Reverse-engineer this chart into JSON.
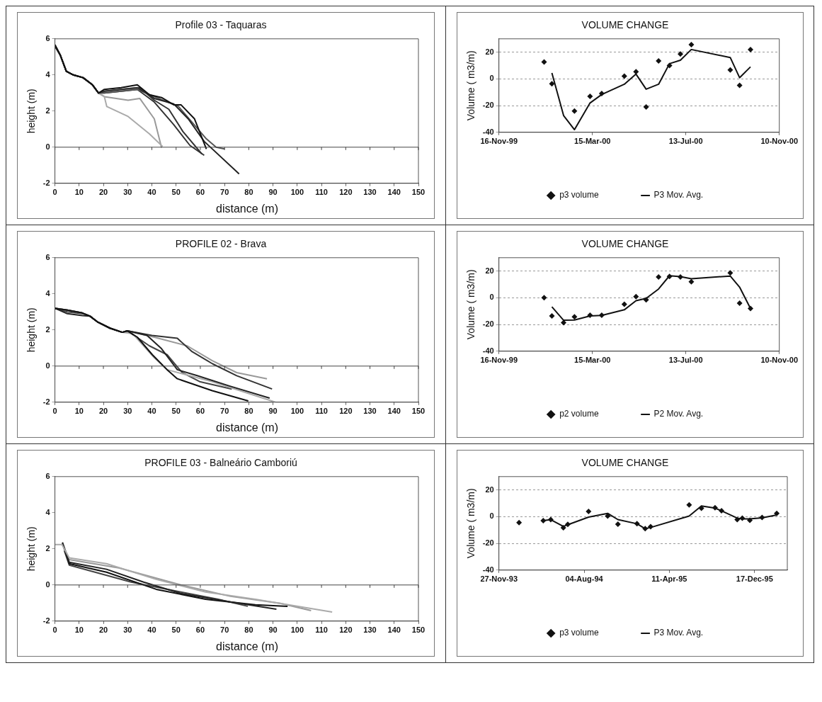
{
  "chart_data": [
    {
      "type": "line",
      "title": "Profile 03 - Taquaras",
      "ref_lines": [
        {
          "axis": "y",
          "value": 0
        }
      ],
      "xlabel": "distance (m)",
      "ylabel": "height (m)",
      "xlim": [
        0,
        150
      ],
      "xticks": [
        0,
        10,
        20,
        30,
        40,
        50,
        60,
        70,
        80,
        90,
        100,
        110,
        120,
        130,
        140,
        150
      ],
      "ylim": [
        -2,
        6
      ],
      "yticks": [
        -2,
        0,
        2,
        4,
        6
      ],
      "grid": false,
      "legend": false,
      "marker": "none",
      "series": [
        {
          "color": "#111111",
          "x": [
            0,
            2.2,
            4.7,
            7.6,
            11.6,
            15.5,
            18,
            20.4,
            27.3,
            34,
            39,
            44,
            49,
            52,
            57.6,
            62.5
          ],
          "values": [
            5.67,
            5.1,
            4.2,
            4,
            3.85,
            3.45,
            3,
            3.2,
            3.3,
            3.45,
            2.9,
            2.75,
            2.35,
            2.35,
            1.57,
            -0.1
          ]
        },
        {
          "color": "#333333",
          "x": [
            0,
            2.2,
            4.7,
            7.6,
            11.6,
            15.5,
            18,
            20.4,
            27.3,
            35,
            41,
            47,
            52.8,
            60.6
          ],
          "values": [
            5.67,
            5.1,
            4.2,
            4,
            3.85,
            3.45,
            3,
            3.1,
            3.2,
            3.3,
            2.6,
            2.1,
            0.87,
            -0.37
          ]
        },
        {
          "color": "#222222",
          "x": [
            0,
            2.2,
            4.7,
            7.6,
            11.6,
            15.5,
            18,
            20.4,
            27.3,
            34,
            41,
            49,
            55,
            61.6,
            76
          ],
          "values": [
            5.6,
            5.1,
            4.2,
            4,
            3.85,
            3.45,
            3,
            3.1,
            3.2,
            3.3,
            2.7,
            2.4,
            1.57,
            0.32,
            -1.48
          ]
        },
        {
          "color": "#555555",
          "x": [
            0,
            2.2,
            4.7,
            7.6,
            11.6,
            15.5,
            18,
            20.4,
            27.3,
            34,
            41,
            51,
            62.5,
            66.5,
            70
          ],
          "values": [
            5.6,
            5.1,
            4.2,
            4,
            3.85,
            3.45,
            3,
            3,
            3.1,
            3.2,
            2.8,
            2.25,
            0.46,
            0,
            -0.1
          ]
        },
        {
          "color": "#aaaaaa",
          "x": [
            0,
            2.2,
            4.7,
            7.6,
            11.6,
            15.5,
            18,
            20.4,
            21.4,
            30.2,
            39,
            44.4
          ],
          "values": [
            5.6,
            5.1,
            4.2,
            4,
            3.85,
            3.45,
            3,
            2.8,
            2.25,
            1.7,
            0.74,
            0.04
          ]
        },
        {
          "color": "#999999",
          "x": [
            0,
            2.2,
            4.7,
            7.6,
            11.6,
            15.5,
            18,
            20.4,
            30.2,
            35,
            41,
            44
          ],
          "values": [
            5.6,
            5.1,
            4.2,
            4,
            3.85,
            3.45,
            3,
            2.8,
            2.6,
            2.7,
            1.57,
            -0.03
          ]
        },
        {
          "color": "#333333",
          "x": [
            0,
            2.2,
            4.7,
            7.6,
            11.6,
            15.5,
            18,
            20.4,
            27.3,
            34,
            41,
            49,
            55.7,
            61.6
          ],
          "values": [
            5.6,
            5.1,
            4.2,
            4,
            3.85,
            3.45,
            3,
            3,
            3.1,
            3.2,
            2.5,
            1.25,
            0.1,
            -0.45
          ]
        }
      ]
    },
    {
      "type": "scatter",
      "title": "VOLUME CHANGE",
      "ylabel": "Volume ( m3/m)",
      "xlim": [
        "1999-11-16",
        "2000-11-10"
      ],
      "xticks": [
        {
          "value": "1999-11-16",
          "label": "16-Nov-99"
        },
        {
          "value": "2000-03-15",
          "label": "15-Mar-00"
        },
        {
          "value": "2000-07-13",
          "label": "13-Jul-00"
        },
        {
          "value": "2000-11-10",
          "label": "10-Nov-00"
        }
      ],
      "ylim": [
        -40,
        30
      ],
      "yticks": [
        -40,
        -20,
        0,
        20
      ],
      "grid": "y",
      "legend": "bottom",
      "series": [
        {
          "name": "p3 volume",
          "type": "scatter",
          "marker": "diamond",
          "color": "#111111",
          "x": [
            "2000-01-13",
            "2000-01-23",
            "2000-02-21",
            "2000-03-12",
            "2000-03-27",
            "2000-04-25",
            "2000-05-10",
            "2000-05-23",
            "2000-06-08",
            "2000-06-22",
            "2000-07-06",
            "2000-07-20",
            "2000-09-08",
            "2000-09-20",
            "2000-10-04"
          ],
          "values": [
            12.6,
            -3.6,
            -24,
            -13,
            -11,
            2,
            5.4,
            -21,
            13.4,
            10,
            18.6,
            25.6,
            6.7,
            -4.9,
            22
          ]
        },
        {
          "name": "P3 Mov. Avg.",
          "type": "line",
          "marker": "none",
          "color": "#111111",
          "x": [
            "2000-01-23",
            "2000-02-07",
            "2000-02-21",
            "2000-03-12",
            "2000-03-27",
            "2000-04-25",
            "2000-05-10",
            "2000-05-23",
            "2000-06-08",
            "2000-06-22",
            "2000-07-06",
            "2000-07-20",
            "2000-09-08",
            "2000-09-20",
            "2000-10-04"
          ],
          "values": [
            4.4,
            -27.4,
            -38,
            -18,
            -11.7,
            -4,
            3.6,
            -7.7,
            -4,
            11.4,
            14,
            22,
            16,
            0.9,
            9
          ]
        }
      ]
    },
    {
      "type": "line",
      "title": "PROFILE 02 - Brava",
      "ref_lines": [
        {
          "axis": "y",
          "value": 0
        }
      ],
      "xlabel": "distance (m)",
      "ylabel": "height (m)",
      "xlim": [
        0,
        150
      ],
      "xticks": [
        0,
        10,
        20,
        30,
        40,
        50,
        60,
        70,
        80,
        90,
        100,
        110,
        120,
        130,
        140,
        150
      ],
      "ylim": [
        -2,
        6
      ],
      "yticks": [
        -2,
        0,
        2,
        4,
        6
      ],
      "grid": false,
      "legend": false,
      "marker": "none",
      "series": [
        {
          "color": "#111111",
          "x": [
            0,
            5.1,
            11.3,
            14.4,
            17.5,
            22.7,
            27.8,
            29.9,
            34,
            40.2,
            46.3,
            50.5,
            64.9,
            79.8
          ],
          "values": [
            3.2,
            3.1,
            2.94,
            2.77,
            2.45,
            2.1,
            1.87,
            1.95,
            1.6,
            0.63,
            -0.2,
            -0.7,
            -1.36,
            -1.93
          ]
        },
        {
          "color": "#222222",
          "x": [
            0,
            5.1,
            11.3,
            14.4,
            17.5,
            22.7,
            27.8,
            29.9,
            38,
            44,
            50.5,
            58.7,
            72,
            88.6
          ],
          "values": [
            3.2,
            2.9,
            2.8,
            2.77,
            2.45,
            2.1,
            1.87,
            1.95,
            1.7,
            0.96,
            -0.2,
            -0.53,
            -1.1,
            -1.77
          ]
        },
        {
          "color": "#333333",
          "x": [
            0,
            5.1,
            11.3,
            14.4,
            17.5,
            22.7,
            27.8,
            29.9,
            40,
            50.5,
            56.6,
            65,
            75,
            89.6
          ],
          "values": [
            3.2,
            3.1,
            2.94,
            2.77,
            2.45,
            2.1,
            1.87,
            1.95,
            1.7,
            1.54,
            0.8,
            0.13,
            -0.53,
            -1.27
          ]
        },
        {
          "color": "#aaaaaa",
          "x": [
            0,
            5.1,
            11.3,
            14.4,
            17.5,
            22.7,
            27.8,
            32,
            41,
            46.3,
            64.9,
            91
          ],
          "values": [
            3.2,
            3.1,
            2.94,
            2.77,
            2.45,
            2.1,
            1.87,
            1.8,
            0.46,
            -0.2,
            -0.86,
            -2
          ]
        },
        {
          "color": "#999999",
          "x": [
            0,
            5.1,
            11.3,
            14.4,
            17.5,
            22.7,
            27.8,
            29.9,
            41,
            54.6,
            64.9,
            75,
            87.5
          ],
          "values": [
            3.2,
            3.1,
            2.94,
            2.77,
            2.45,
            2.1,
            1.87,
            1.95,
            1.6,
            1.12,
            0.3,
            -0.36,
            -0.7
          ]
        },
        {
          "color": "#444444",
          "x": [
            0,
            5.1,
            11.3,
            14.4,
            17.5,
            22.7,
            27.8,
            29.9,
            39,
            46.3,
            52.5,
            59.7,
            73
          ],
          "values": [
            3.2,
            3,
            2.9,
            2.77,
            2.45,
            2.1,
            1.87,
            1.95,
            1.12,
            0.63,
            -0.36,
            -0.86,
            -1.27
          ]
        }
      ]
    },
    {
      "type": "scatter",
      "title": "VOLUME CHANGE",
      "ylabel": "Volume ( m3/m)",
      "xlim": [
        "1999-11-16",
        "2000-11-10"
      ],
      "xticks": [
        {
          "value": "1999-11-16",
          "label": "16-Nov-99"
        },
        {
          "value": "2000-03-15",
          "label": "15-Mar-00"
        },
        {
          "value": "2000-07-13",
          "label": "13-Jul-00"
        },
        {
          "value": "2000-11-10",
          "label": "10-Nov-00"
        }
      ],
      "ylim": [
        -40,
        30
      ],
      "yticks": [
        -40,
        -20,
        0,
        20
      ],
      "grid": "y",
      "legend": "bottom",
      "series": [
        {
          "name": "p2 volume",
          "type": "scatter",
          "marker": "diamond",
          "color": "#111111",
          "x": [
            "2000-01-13",
            "2000-01-23",
            "2000-02-07",
            "2000-02-21",
            "2000-03-12",
            "2000-03-27",
            "2000-04-25",
            "2000-05-10",
            "2000-05-23",
            "2000-06-08",
            "2000-06-22",
            "2000-07-06",
            "2000-07-20",
            "2000-09-08",
            "2000-09-20",
            "2000-10-04"
          ],
          "values": [
            0,
            -13.6,
            -18.6,
            -14.3,
            -13,
            -13,
            -4.9,
            0.8,
            -1.5,
            15.6,
            16,
            15.6,
            12,
            18.6,
            -4,
            -8
          ]
        },
        {
          "name": "P2 Mov. Avg.",
          "type": "line",
          "marker": "none",
          "color": "#111111",
          "x": [
            "2000-01-23",
            "2000-02-07",
            "2000-02-21",
            "2000-03-12",
            "2000-03-27",
            "2000-04-25",
            "2000-05-10",
            "2000-05-23",
            "2000-06-08",
            "2000-06-22",
            "2000-07-06",
            "2000-07-20",
            "2000-09-08",
            "2000-09-20",
            "2000-10-04"
          ],
          "values": [
            -6.8,
            -16.8,
            -16.6,
            -13.6,
            -13.2,
            -9,
            -2.2,
            -0.5,
            6.6,
            16.5,
            15.8,
            14.3,
            16.3,
            8,
            -8
          ]
        }
      ]
    },
    {
      "type": "line",
      "title": "PROFILE 03 - Balneário Camboriú",
      "ref_lines": [
        {
          "axis": "y",
          "value": 0
        }
      ],
      "xlabel": "distance (m)",
      "ylabel": "height (m)",
      "xlim": [
        0,
        150
      ],
      "xticks": [
        0,
        10,
        20,
        30,
        40,
        50,
        60,
        70,
        80,
        90,
        100,
        110,
        120,
        130,
        140,
        150
      ],
      "ylim": [
        -2,
        6
      ],
      "yticks": [
        -2,
        0,
        2,
        4,
        6
      ],
      "grid": false,
      "legend": false,
      "marker": "none",
      "series": [
        {
          "color": "#aaaaaa",
          "x": [
            0,
            2.9,
            5.9,
            21.3,
            41.8,
            62.2,
            82.7,
            114.4
          ],
          "values": [
            2.24,
            2.24,
            1.5,
            1.18,
            0.31,
            -0.39,
            -0.79,
            -1.5
          ]
        },
        {
          "color": "#222222",
          "x": [
            3.1,
            5.9,
            21.3,
            36.6,
            52,
            72.5,
            91.4
          ],
          "values": [
            2.36,
            1.26,
            0.87,
            0.16,
            -0.47,
            -0.94,
            -1.34
          ]
        },
        {
          "color": "#111111",
          "x": [
            3.1,
            5.9,
            21.3,
            41.8,
            62.2,
            82.7,
            96
          ],
          "values": [
            2.3,
            1.18,
            0.71,
            -0.24,
            -0.79,
            -1.1,
            -1.18
          ]
        },
        {
          "color": "#999999",
          "x": [
            3.1,
            5.9,
            26.4,
            52,
            72.5,
            93,
            105.7
          ],
          "values": [
            2.3,
            1.4,
            0.94,
            0,
            -0.63,
            -1.02,
            -1.42
          ]
        },
        {
          "color": "#444444",
          "x": [
            3.9,
            5.9,
            31.5,
            52,
            67.4,
            79.6
          ],
          "values": [
            1.89,
            1.1,
            0.16,
            -0.39,
            -0.79,
            -1.18
          ]
        }
      ]
    },
    {
      "type": "scatter",
      "title": "VOLUME CHANGE",
      "ylabel": "Volume ( m3/m)",
      "xlim": [
        "1993-11-27",
        "1996-03-22"
      ],
      "xticks": [
        {
          "value": "1993-11-27",
          "label": "27-Nov-93"
        },
        {
          "value": "1994-08-04",
          "label": "04-Aug-94"
        },
        {
          "value": "1995-04-11",
          "label": "11-Apr-95"
        },
        {
          "value": "1995-12-17",
          "label": "17-Dec-95"
        }
      ],
      "ylim": [
        -40,
        30
      ],
      "yticks": [
        -40,
        -20,
        0,
        20
      ],
      "grid": "y",
      "legend": "bottom",
      "series": [
        {
          "name": "p3 volume",
          "type": "scatter",
          "marker": "diamond",
          "color": "#111111",
          "x": [
            "1994-01-25",
            "1994-04-06",
            "1994-04-28",
            "1994-06-04",
            "1994-06-17",
            "1994-08-17",
            "1994-10-12",
            "1994-11-11",
            "1995-01-06",
            "1995-01-30",
            "1995-02-15",
            "1995-06-08",
            "1995-07-14",
            "1995-08-23",
            "1995-09-11",
            "1995-10-27",
            "1995-11-11",
            "1995-12-03",
            "1996-01-08",
            "1996-02-20"
          ],
          "values": [
            -4.4,
            -3,
            -2.2,
            -8.3,
            -5.8,
            3.9,
            0.5,
            -5.6,
            -5.3,
            -9,
            -7.5,
            8.8,
            6.3,
            6.7,
            4.4,
            -2.2,
            -1.1,
            -2.7,
            -0.6,
            2.5
          ]
        },
        {
          "name": "P3 Mov. Avg.",
          "type": "line",
          "marker": "none",
          "color": "#111111",
          "x": [
            "1994-04-06",
            "1994-04-28",
            "1994-06-04",
            "1994-06-17",
            "1994-08-17",
            "1994-10-12",
            "1994-11-11",
            "1995-01-06",
            "1995-01-30",
            "1995-02-15",
            "1995-06-08",
            "1995-07-14",
            "1995-08-23",
            "1995-09-11",
            "1995-10-27",
            "1995-11-11",
            "1995-12-03",
            "1996-01-08",
            "1996-02-20"
          ],
          "values": [
            -3,
            -2.2,
            -7.3,
            -6,
            -0.3,
            2.5,
            -2.2,
            -5.3,
            -9,
            -8.1,
            0.5,
            8,
            6.4,
            4.4,
            -1.1,
            -1.7,
            -1.7,
            -0.9,
            1.3
          ]
        }
      ]
    }
  ]
}
